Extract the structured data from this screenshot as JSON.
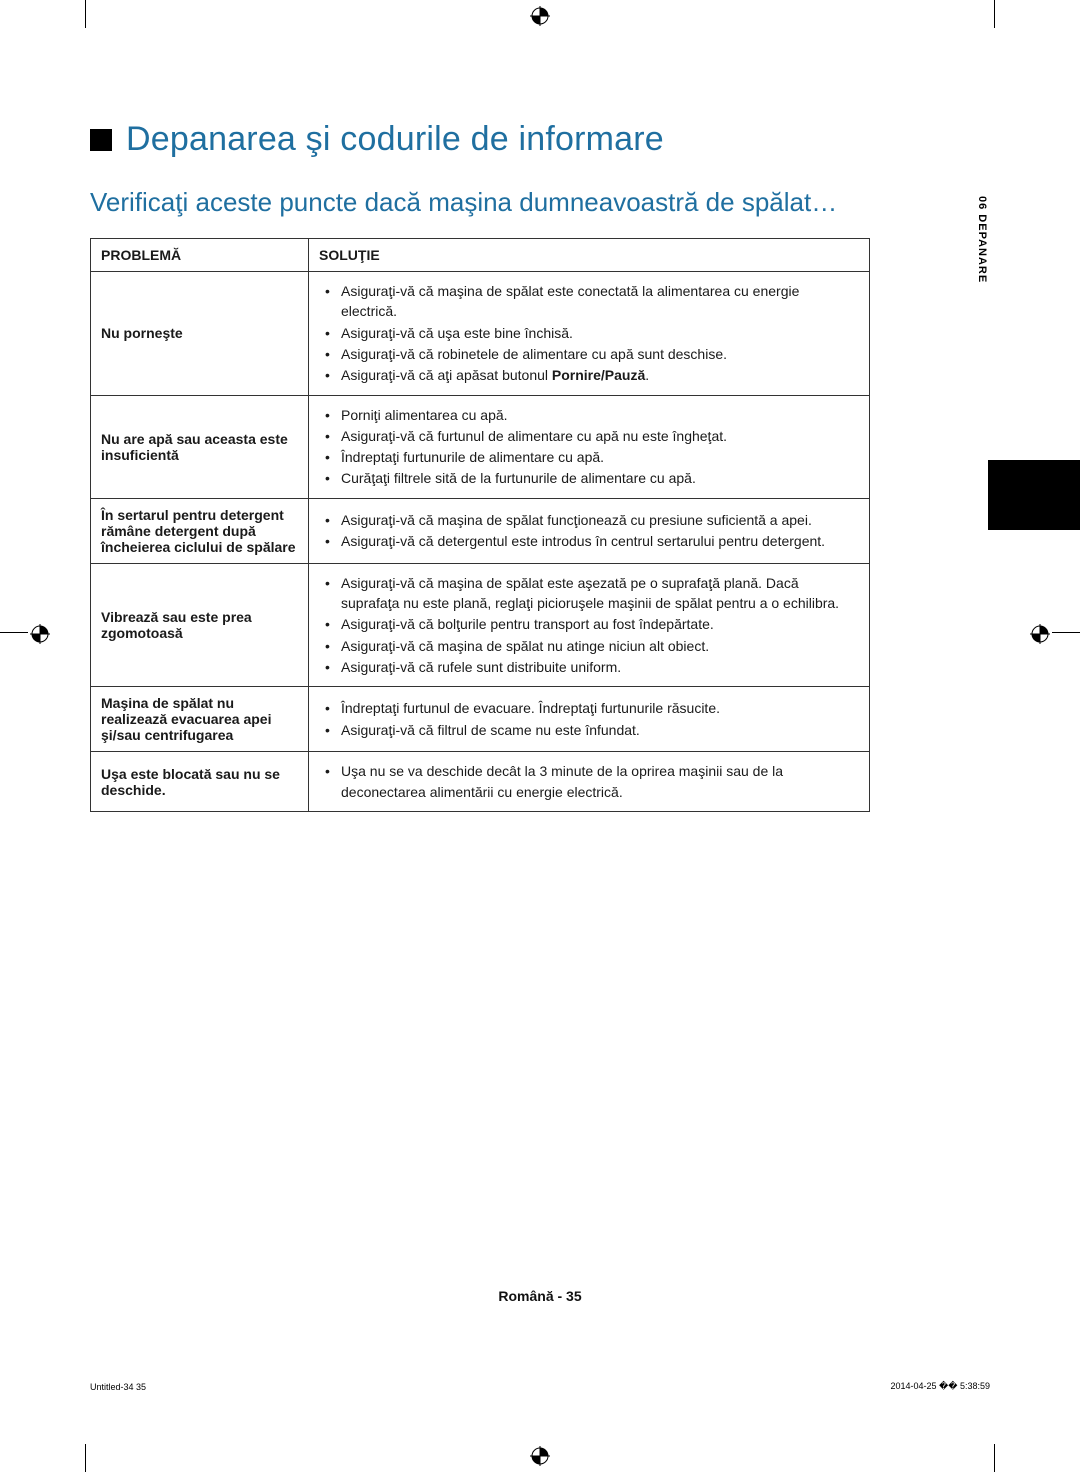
{
  "title": "Depanarea şi codurile de informare",
  "subtitle": "Verificaţi aceste puncte dacă maşina dumneavoastră de spălat…",
  "table": {
    "headers": {
      "problem": "PROBLEMĂ",
      "solution": "SOLUŢIE"
    },
    "rows": [
      {
        "problem": "Nu porneşte",
        "solutions": [
          "Asiguraţi-vă că maşina de spălat este conectată la alimentarea cu energie electrică.",
          "Asiguraţi-vă că uşa este bine închisă.",
          "Asiguraţi-vă că robinetele de alimentare cu apă sunt deschise.",
          "Asiguraţi-vă că aţi apăsat butonul <b>Pornire/Pauză</b>."
        ]
      },
      {
        "problem": "Nu are apă sau aceasta este insuficientă",
        "solutions": [
          "Porniţi alimentarea cu apă.",
          "Asiguraţi-vă că furtunul de alimentare cu apă nu este îngheţat.",
          "Îndreptaţi furtunurile de alimentare cu apă.",
          "Curăţaţi filtrele sită de la furtunurile de alimentare cu apă."
        ]
      },
      {
        "problem": "În sertarul pentru detergent rămâne detergent după încheierea ciclului de spălare",
        "solutions": [
          "Asiguraţi-vă că maşina de spălat funcţionează cu presiune suficientă a apei.",
          "Asiguraţi-vă că detergentul este introdus în centrul sertarului pentru detergent."
        ]
      },
      {
        "problem": "Vibrează sau este prea zgomotoasă",
        "solutions": [
          "Asiguraţi-vă că maşina de spălat este aşezată pe o suprafaţă plană. Dacă suprafaţa nu este plană, reglaţi picioruşele maşinii de spălat pentru a o echilibra.",
          "Asiguraţi-vă că bolţurile pentru transport au fost îndepărtate.",
          "Asiguraţi-vă că maşina de spălat nu atinge niciun alt obiect.",
          "Asiguraţi-vă că rufele sunt distribuite uniform."
        ]
      },
      {
        "problem": "Maşina de spălat nu realizează evacuarea apei şi/sau centrifugarea",
        "solutions": [
          "Îndreptaţi furtunul de evacuare. Îndreptaţi furtunurile răsucite.",
          "Asiguraţi-vă că filtrul de scame nu este înfundat."
        ]
      },
      {
        "problem": "Uşa este blocată sau nu se deschide.",
        "solutions": [
          "Uşa nu se va deschide decât la 3 minute de la oprirea maşinii sau de la deconectarea alimentării cu energie electrică."
        ]
      }
    ]
  },
  "side_tab": "06  DEPANARE",
  "footer": "Română - 35",
  "footmeta_left": "Untitled-34   35",
  "footmeta_right": "2014-04-25   �� 5:38:59"
}
